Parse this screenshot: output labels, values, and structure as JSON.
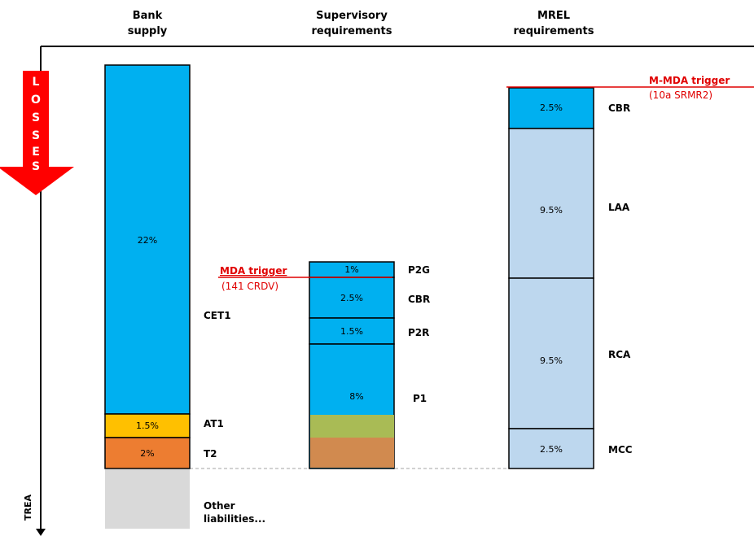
{
  "headers": {
    "bank_supply": [
      "Bank",
      "supply"
    ],
    "supervisory": [
      "Supervisory",
      "requirements"
    ],
    "mrel": [
      "MREL",
      "requirements"
    ]
  },
  "losses": [
    "L",
    "O",
    "S",
    "S",
    "E",
    "S"
  ],
  "axis_label": "TREA",
  "bank_supply": {
    "segments": [
      {
        "value": "22%",
        "label": "CET1",
        "color": "#00b0f0"
      },
      {
        "value": "1.5%",
        "label": "AT1",
        "color": "#ffc000"
      },
      {
        "value": "2%",
        "label": "T2",
        "color": "#ed7d31"
      }
    ],
    "other_liabilities": [
      "Other",
      "liabilities..."
    ],
    "other_color": "#d9d9d9"
  },
  "supervisory": {
    "segments": [
      {
        "value": "1%",
        "label": "P2G",
        "color": "#00b0f0"
      },
      {
        "value": "2.5%",
        "label": "CBR",
        "color": "#00b0f0"
      },
      {
        "value": "1.5%",
        "label": "P2R",
        "color": "#00b0f0"
      },
      {
        "value": "8%",
        "label": "P1",
        "color": "#00b0f0"
      }
    ],
    "p1_at1_color": "#a9bb55",
    "p1_t2_color": "#d18a4f"
  },
  "mrel": {
    "segments": [
      {
        "value": "2.5%",
        "label": "CBR",
        "color": "#00b0f0"
      },
      {
        "value": "9.5%",
        "label": "LAA",
        "color": "#bdd7ee"
      },
      {
        "value": "9.5%",
        "label": "RCA",
        "color": "#bdd7ee"
      },
      {
        "value": "2.5%",
        "label": "MCC",
        "color": "#bdd7ee"
      }
    ]
  },
  "triggers": {
    "mda": {
      "title": "MDA trigger",
      "sub": "(141 CRDV)"
    },
    "m_mda": {
      "title": "M-MDA trigger",
      "sub": "(10a SRMR2)"
    }
  },
  "colors": {
    "loss_arrow": "#ff0000",
    "trigger_line": "#e00000"
  }
}
